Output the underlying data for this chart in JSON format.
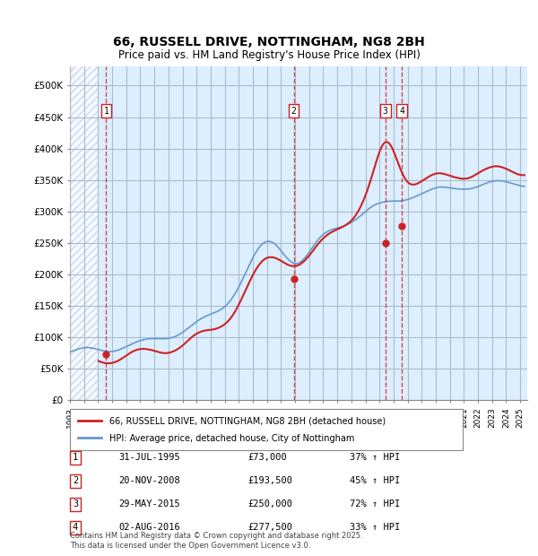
{
  "title_line1": "66, RUSSELL DRIVE, NOTTINGHAM, NG8 2BH",
  "title_line2": "Price paid vs. HM Land Registry's House Price Index (HPI)",
  "ylim": [
    0,
    530000
  ],
  "yticks": [
    0,
    50000,
    100000,
    150000,
    200000,
    250000,
    300000,
    350000,
    400000,
    450000,
    500000
  ],
  "ytick_labels": [
    "£0",
    "£50K",
    "£100K",
    "£150K",
    "£200K",
    "£250K",
    "£300K",
    "£350K",
    "£400K",
    "£450K",
    "£500K"
  ],
  "xlim_start": 1993.0,
  "xlim_end": 2025.5,
  "hpi_color": "#6699cc",
  "price_color": "#cc2222",
  "sale_dates": [
    1995.58,
    2008.9,
    2015.41,
    2016.59
  ],
  "sale_prices": [
    73000,
    193500,
    250000,
    277500
  ],
  "sale_labels": [
    "1",
    "2",
    "3",
    "4"
  ],
  "legend_price_label": "66, RUSSELL DRIVE, NOTTINGHAM, NG8 2BH (detached house)",
  "legend_hpi_label": "HPI: Average price, detached house, City of Nottingham",
  "table_data": [
    [
      "1",
      "31-JUL-1995",
      "£73,000",
      "37% ↑ HPI"
    ],
    [
      "2",
      "20-NOV-2008",
      "£193,500",
      "45% ↑ HPI"
    ],
    [
      "3",
      "29-MAY-2015",
      "£250,000",
      "72% ↑ HPI"
    ],
    [
      "4",
      "02-AUG-2016",
      "£277,500",
      "33% ↑ HPI"
    ]
  ],
  "footer": "Contains HM Land Registry data © Crown copyright and database right 2025.\nThis data is licensed under the Open Government Licence v3.0.",
  "bg_color": "#ddeeff",
  "hatch_color": "#bbccdd",
  "grid_color": "#aabbcc"
}
